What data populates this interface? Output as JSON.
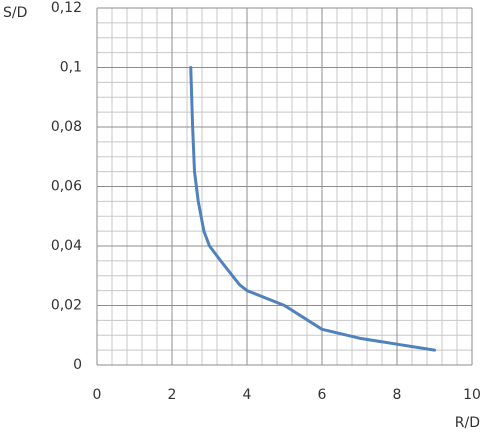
{
  "chart_data": {
    "type": "line",
    "y_label": "S/D",
    "x_label": "R/D",
    "x": [
      2.5,
      2.55,
      2.6,
      2.7,
      2.85,
      3,
      3.3,
      3.8,
      4,
      5,
      6,
      7,
      8,
      9
    ],
    "series": [
      {
        "name": "S/D",
        "color": "#4f81bd",
        "values": [
          0.1,
          0.08,
          0.065,
          0.055,
          0.045,
          0.04,
          0.035,
          0.027,
          0.025,
          0.02,
          0.012,
          0.009,
          0.007,
          0.005
        ]
      }
    ],
    "xlim": [
      0,
      10
    ],
    "xticks": [
      0,
      2,
      4,
      6,
      8,
      10
    ],
    "ylim": [
      0,
      0.12
    ],
    "yticks": [
      0,
      {
        "value": 0.02,
        "label": "0,02"
      },
      {
        "value": 0.04,
        "label": "0,04"
      },
      {
        "value": 0.06,
        "label": "0,06"
      },
      {
        "value": 0.08,
        "label": "0,08"
      },
      {
        "value": 0.1,
        "label": "0,1"
      },
      {
        "value": 0.12,
        "label": "0,12"
      }
    ],
    "grid": true
  }
}
